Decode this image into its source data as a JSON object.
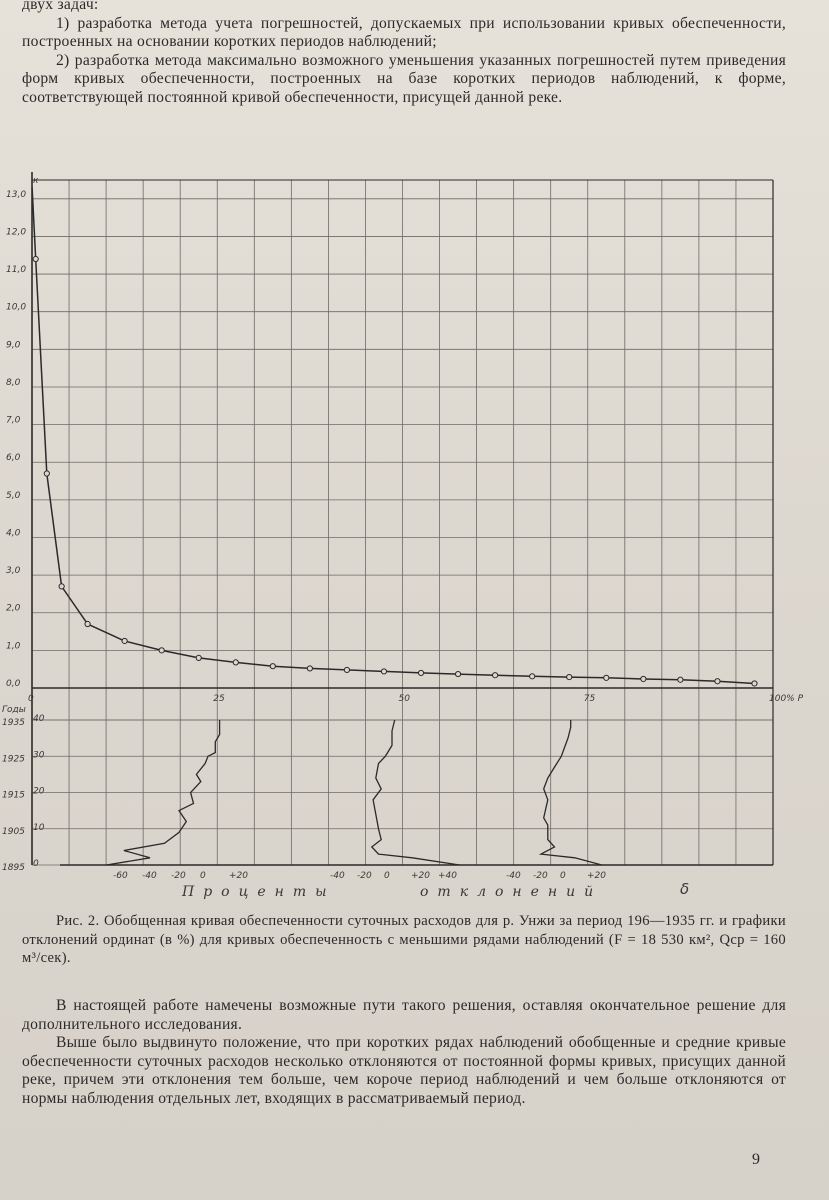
{
  "top_text": {
    "line1": "двух задач:",
    "item1": "1) разработка метода учета погрешностей, допускаемых при использовании кривых обеспеченности, построенных на основании коротких периодов наблюдений;",
    "item2": "2) разработка метода максимально возможного уменьшения указанных погрешностей путем приведения форм кривых обеспеченности, построенных на базе коротких периодов наблюдений, к форме, соответствующей постоянной кривой обеспеченности, присущей данной реке."
  },
  "figure": {
    "y_axis_letter": "к",
    "y_ticks": [
      "0,0",
      "1,0",
      "2,0",
      "3,0",
      "4,0",
      "5,0",
      "6,0",
      "7,0",
      "8,0",
      "9,0",
      "10,0",
      "11,0",
      "12,0",
      "13,0"
    ],
    "x_ticks": [
      "0",
      "25",
      "50",
      "75",
      "100% P"
    ],
    "years_label": "Годы",
    "year_ticks": [
      "1935",
      "1925",
      "1915",
      "1905",
      "1895"
    ],
    "lower_y_ticks": [
      "40",
      "30",
      "20",
      "10",
      "0"
    ],
    "dev_ticks_1": [
      "-60",
      "-40",
      "-20",
      "0",
      "+20"
    ],
    "dev_ticks_2": [
      "-40",
      "-20",
      "0",
      "+20",
      "+40"
    ],
    "dev_ticks_3": [
      "-40",
      "-20",
      "0",
      "+20"
    ],
    "x_axis_word_1": "Проценты",
    "x_axis_word_2": "отклонений",
    "delta_symbol": "δ"
  },
  "chart_data": {
    "type": "line",
    "xlabel": "P, %",
    "ylabel": "к",
    "xlim": [
      0,
      100
    ],
    "ylim": [
      0,
      13.5
    ],
    "series": [
      {
        "x": [
          0.01,
          0.5,
          2,
          4,
          7.5,
          12.5,
          17.5,
          22.5,
          27.5,
          32.5,
          37.5,
          42.5,
          47.5,
          52.5,
          57.5,
          62.5,
          67.5,
          72.5,
          77.5,
          82.5,
          87.5,
          92.5,
          97.5
        ],
        "y": [
          13.3,
          11.4,
          5.7,
          2.7,
          1.7,
          1.25,
          1.0,
          0.8,
          0.68,
          0.58,
          0.52,
          0.48,
          0.44,
          0.4,
          0.37,
          0.34,
          0.31,
          0.29,
          0.27,
          0.24,
          0.22,
          0.18,
          0.12
        ]
      }
    ],
    "grid": true
  },
  "caption": {
    "text": "Рис. 2. Обобщенная кривая обеспеченности суточных расходов для р. Унжи за период 196—1935 гг. и графики отклонений ординат (в %) для кривых обеспеченность с меньшими рядами наблюдений (F = 18 530 км², Qср = 160 м³/сек)."
  },
  "bottom_text": {
    "para1": "В настоящей работе намечены возможные пути такого решения, оставляя окончательное решение для дополнительного исследования.",
    "para2": "Выше было выдвинуто положение, что при коротких рядах наблюдений обобщенные и средние кривые обеспеченности суточных расходов несколько отклоняются от постоянной формы кривых, присущих данной реке, причем эти отклонения тем больше, чем короче период наблюдений и чем больше отклоняются от нормы наблюдения отдельных лет, входящих в рассматриваемый период."
  },
  "page_number": "9"
}
